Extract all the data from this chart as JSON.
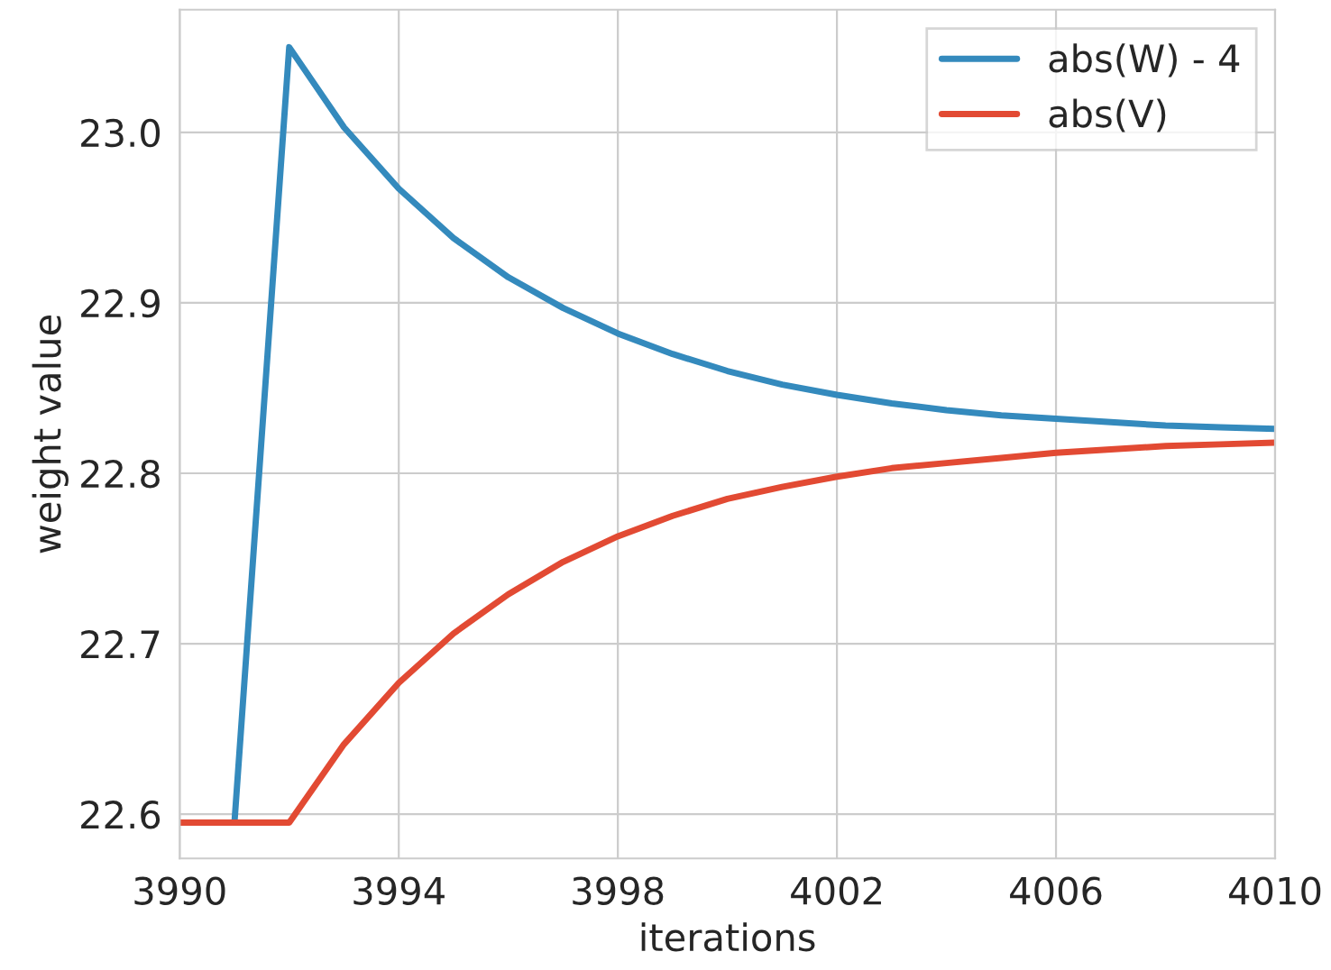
{
  "chart_data": {
    "type": "line",
    "xlabel": "iterations",
    "ylabel": "weight value",
    "x": [
      3990,
      3991,
      3992,
      3993,
      3994,
      3995,
      3996,
      3997,
      3998,
      3999,
      4000,
      4001,
      4002,
      4003,
      4004,
      4005,
      4006,
      4007,
      4008,
      4009,
      4010
    ],
    "series": [
      {
        "name": "abs(W) - 4",
        "color": "#348abd",
        "values": [
          null,
          22.595,
          23.05,
          23.003,
          22.967,
          22.938,
          22.915,
          22.897,
          22.882,
          22.87,
          22.86,
          22.852,
          22.846,
          22.841,
          22.837,
          22.834,
          22.832,
          22.83,
          22.828,
          22.827,
          22.826
        ]
      },
      {
        "name": "abs(V)",
        "color": "#e24a33",
        "values": [
          22.595,
          22.595,
          22.595,
          22.641,
          22.677,
          22.706,
          22.729,
          22.748,
          22.763,
          22.775,
          22.785,
          22.792,
          22.798,
          22.803,
          22.806,
          22.809,
          22.812,
          22.814,
          22.816,
          22.817,
          22.818
        ]
      }
    ],
    "xlim": [
      3990,
      4010
    ],
    "xticks": [
      3990,
      3994,
      3998,
      4002,
      4006,
      4010
    ],
    "ylim": [
      22.574,
      23.072
    ],
    "yticks": [
      {
        "value": 22.6,
        "label": "22.6"
      },
      {
        "value": 22.7,
        "label": "22.7"
      },
      {
        "value": 22.8,
        "label": "22.8"
      },
      {
        "value": 22.9,
        "label": "22.9"
      },
      {
        "value": 23.0,
        "label": "23.0"
      }
    ],
    "grid": true,
    "legend": "top right",
    "line_style": "solid",
    "marker": "none"
  }
}
